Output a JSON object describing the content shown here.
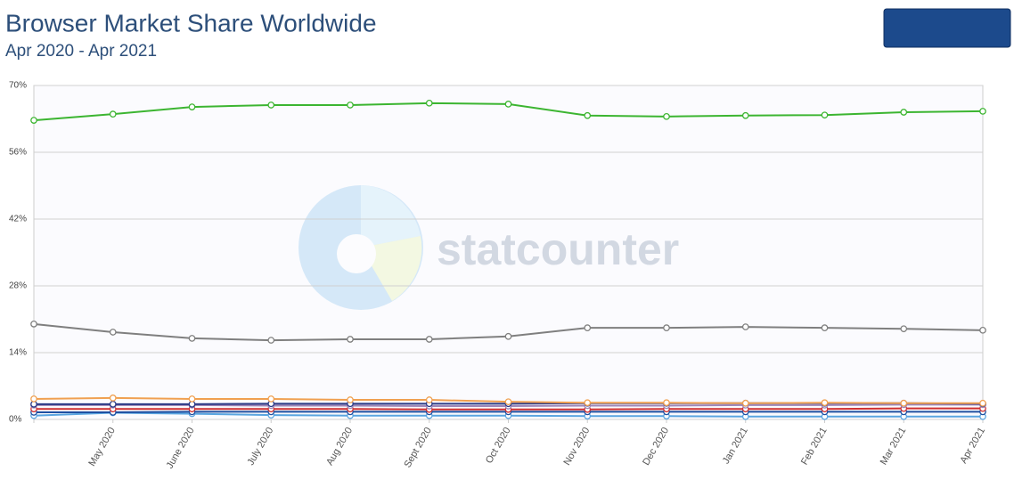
{
  "chart_data": {
    "type": "line",
    "title": "Browser Market Share Worldwide",
    "subtitle": "Apr 2020 - Apr 2021",
    "watermark": "statcounter",
    "categories": [
      null,
      "May 2020",
      "June 2020",
      "July 2020",
      "Aug 2020",
      "Sept 2020",
      "Oct 2020",
      "Nov 2020",
      "Dec 2020",
      "Jan 2021",
      "Feb 2021",
      "Mar 2021",
      "Apr 2021"
    ],
    "series": [
      {
        "color": "#3cb531",
        "values": [
          62.7,
          64.0,
          65.5,
          65.9,
          65.9,
          66.3,
          66.1,
          63.7,
          63.5,
          63.7,
          63.8,
          64.4,
          64.6
        ]
      },
      {
        "color": "#7f7f7f",
        "values": [
          20.0,
          18.3,
          17.0,
          16.6,
          16.8,
          16.8,
          17.4,
          19.2,
          19.2,
          19.4,
          19.2,
          19.0,
          18.7
        ]
      },
      {
        "color": "#f0a050",
        "values": [
          4.3,
          4.5,
          4.3,
          4.3,
          4.1,
          4.1,
          3.7,
          3.5,
          3.5,
          3.4,
          3.5,
          3.4,
          3.4
        ]
      },
      {
        "color": "#2b3a86",
        "values": [
          3.2,
          3.2,
          3.2,
          3.3,
          3.3,
          3.3,
          3.3,
          3.4,
          3.4,
          3.4,
          3.4,
          3.4,
          3.3
        ]
      },
      {
        "color": "#9d86b8",
        "values": [
          3.0,
          3.0,
          3.0,
          2.9,
          2.9,
          2.8,
          2.8,
          2.9,
          2.9,
          3.0,
          3.0,
          3.1,
          3.1
        ]
      },
      {
        "color": "#d03030",
        "values": [
          2.2,
          2.2,
          2.2,
          2.2,
          2.2,
          2.1,
          2.1,
          2.1,
          2.2,
          2.2,
          2.2,
          2.3,
          2.3
        ]
      },
      {
        "color": "#1f4fa0",
        "values": [
          1.5,
          1.5,
          1.6,
          1.6,
          1.6,
          1.6,
          1.6,
          1.6,
          1.6,
          1.6,
          1.6,
          1.6,
          1.6
        ]
      },
      {
        "color": "#5aa5e0",
        "values": [
          0.8,
          1.4,
          1.2,
          0.9,
          0.8,
          0.8,
          0.8,
          0.7,
          0.7,
          0.6,
          0.6,
          0.6,
          0.6
        ]
      }
    ],
    "ylim": [
      0,
      70
    ],
    "yticks": [
      {
        "value": 0,
        "label": "0%"
      },
      {
        "value": 14,
        "label": "14%"
      },
      {
        "value": 28,
        "label": "28%"
      },
      {
        "value": 42,
        "label": "42%"
      },
      {
        "value": 56,
        "label": "56%"
      },
      {
        "value": 70,
        "label": "70%"
      }
    ],
    "grid": true
  }
}
